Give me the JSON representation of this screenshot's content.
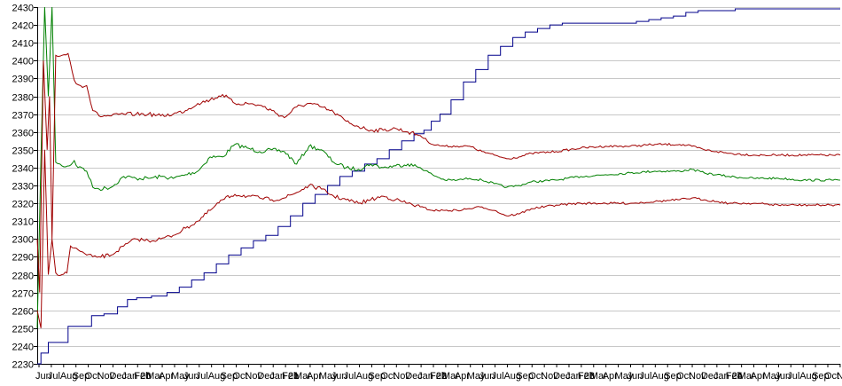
{
  "chart_data": {
    "type": "line",
    "title": "",
    "xlabel": "",
    "ylabel": "",
    "ylim": [
      2230,
      2430
    ],
    "yticks": [
      2230,
      2240,
      2250,
      2260,
      2270,
      2280,
      2290,
      2300,
      2310,
      2320,
      2330,
      2340,
      2350,
      2360,
      2370,
      2380,
      2390,
      2400,
      2410,
      2420,
      2430
    ],
    "xtick_labels": [
      "Jun",
      "Jul",
      "Aug",
      "Sep",
      "Oct",
      "Nov",
      "Dec",
      "Jan 20",
      "Feb",
      "Mar",
      "Apr",
      "May",
      "Jun",
      "Jul",
      "Aug",
      "Sep",
      "Oct",
      "Nov",
      "Dec",
      "Jan 21",
      "Feb",
      "Mar",
      "Apr",
      "May",
      "Jun",
      "Jul",
      "Aug",
      "Sep",
      "Oct",
      "Nov",
      "Dec",
      "Jan 22",
      "Feb",
      "Mar",
      "Apr",
      "May",
      "Jun",
      "Jul",
      "Aug",
      "Sep",
      "Oct",
      "Nov",
      "Dec",
      "Jan 23",
      "Feb",
      "Mar",
      "Apr",
      "May",
      "Jun",
      "Jul",
      "Aug",
      "Sep",
      "Oct",
      "Nov",
      "Dec",
      "Jan 24",
      "Feb",
      "Mar",
      "Apr",
      "May",
      "Jun",
      "Jul",
      "Aug",
      "Sep",
      "Oct",
      "No"
    ],
    "grid": true,
    "legend": "none",
    "x_range": [
      0,
      65
    ],
    "series": [
      {
        "color": "#00008b",
        "style": "step",
        "points": [
          [
            0,
            2230
          ],
          [
            0.6,
            2236
          ],
          [
            1.2,
            2242
          ],
          [
            2,
            2242
          ],
          [
            3,
            2251
          ],
          [
            4,
            2251
          ],
          [
            4.8,
            2257
          ],
          [
            6,
            2258
          ],
          [
            7,
            2262
          ],
          [
            7.6,
            2266
          ],
          [
            8.5,
            2267
          ],
          [
            10,
            2268
          ],
          [
            11,
            2270
          ],
          [
            12,
            2273
          ],
          [
            13,
            2277
          ],
          [
            14,
            2281
          ],
          [
            15,
            2286
          ],
          [
            16,
            2291
          ],
          [
            17,
            2295
          ],
          [
            18,
            2299
          ],
          [
            19,
            2302
          ],
          [
            20,
            2307
          ],
          [
            21,
            2313
          ],
          [
            22,
            2320
          ],
          [
            23,
            2325
          ],
          [
            24,
            2330
          ],
          [
            25,
            2335
          ],
          [
            26,
            2338
          ],
          [
            27,
            2342
          ],
          [
            28,
            2345
          ],
          [
            29,
            2350
          ],
          [
            30,
            2355
          ],
          [
            31,
            2359
          ],
          [
            31.6,
            2361
          ],
          [
            32.2,
            2366
          ],
          [
            33,
            2370
          ],
          [
            34,
            2378
          ],
          [
            35,
            2388
          ],
          [
            36,
            2395
          ],
          [
            37,
            2403
          ],
          [
            38,
            2408
          ],
          [
            39,
            2413
          ],
          [
            40,
            2416
          ],
          [
            41,
            2418
          ],
          [
            42,
            2420
          ],
          [
            43,
            2421
          ],
          [
            44,
            2421
          ],
          [
            45,
            2421
          ],
          [
            46,
            2421
          ],
          [
            47,
            2421
          ],
          [
            48,
            2421
          ],
          [
            49,
            2422
          ],
          [
            50,
            2423
          ],
          [
            51,
            2424
          ],
          [
            52,
            2425
          ],
          [
            53,
            2427
          ],
          [
            54,
            2428
          ],
          [
            55,
            2428
          ],
          [
            56,
            2428
          ],
          [
            57,
            2429
          ],
          [
            58,
            2429
          ],
          [
            60,
            2429
          ],
          [
            62,
            2429
          ],
          [
            65,
            2429
          ]
        ]
      },
      {
        "color": "#008000",
        "style": "noisy",
        "points": [
          [
            0,
            2250
          ],
          [
            0.3,
            2345
          ],
          [
            0.6,
            2430
          ],
          [
            0.9,
            2380
          ],
          [
            1.2,
            2430
          ],
          [
            1.5,
            2343
          ],
          [
            2,
            2341
          ],
          [
            2.6,
            2341
          ],
          [
            3,
            2344
          ],
          [
            3.3,
            2340
          ],
          [
            3.6,
            2340
          ],
          [
            4,
            2338
          ],
          [
            4.5,
            2329
          ],
          [
            5,
            2328
          ],
          [
            6,
            2329
          ],
          [
            7,
            2335
          ],
          [
            8,
            2334
          ],
          [
            9,
            2334
          ],
          [
            10,
            2335
          ],
          [
            11,
            2334
          ],
          [
            12,
            2336
          ],
          [
            13,
            2338
          ],
          [
            14,
            2346
          ],
          [
            15,
            2346
          ],
          [
            16,
            2353
          ],
          [
            17,
            2351
          ],
          [
            18,
            2349
          ],
          [
            19,
            2350
          ],
          [
            20,
            2349
          ],
          [
            21,
            2342
          ],
          [
            22,
            2352
          ],
          [
            23,
            2350
          ],
          [
            24,
            2343
          ],
          [
            25,
            2340
          ],
          [
            26,
            2339
          ],
          [
            27,
            2342
          ],
          [
            28,
            2340
          ],
          [
            29,
            2341
          ],
          [
            30,
            2342
          ],
          [
            31,
            2340
          ],
          [
            32,
            2336
          ],
          [
            33,
            2333
          ],
          [
            34,
            2333
          ],
          [
            35,
            2334
          ],
          [
            36,
            2333
          ],
          [
            37,
            2331
          ],
          [
            38,
            2329
          ],
          [
            39,
            2330
          ],
          [
            40,
            2332
          ],
          [
            42,
            2333
          ],
          [
            44,
            2335
          ],
          [
            46,
            2336
          ],
          [
            48,
            2337
          ],
          [
            50,
            2338
          ],
          [
            52,
            2338
          ],
          [
            53,
            2339
          ],
          [
            54,
            2337
          ],
          [
            55,
            2336
          ],
          [
            56,
            2335
          ],
          [
            58,
            2334
          ],
          [
            60,
            2334
          ],
          [
            62,
            2333
          ],
          [
            65,
            2333
          ]
        ]
      },
      {
        "color": "#a00000",
        "style": "noisy",
        "points": [
          [
            0,
            2300
          ],
          [
            0.2,
            2270
          ],
          [
            0.5,
            2400
          ],
          [
            0.8,
            2350
          ],
          [
            1,
            2380
          ],
          [
            1.2,
            2300
          ],
          [
            1.5,
            2403
          ],
          [
            2,
            2403
          ],
          [
            2.5,
            2404
          ],
          [
            3,
            2389
          ],
          [
            3.5,
            2386
          ],
          [
            4,
            2386
          ],
          [
            4.5,
            2372
          ],
          [
            5,
            2369
          ],
          [
            6,
            2369
          ],
          [
            7,
            2370
          ],
          [
            8,
            2370
          ],
          [
            9,
            2370
          ],
          [
            10,
            2369
          ],
          [
            11,
            2370
          ],
          [
            12,
            2372
          ],
          [
            13,
            2376
          ],
          [
            14,
            2378
          ],
          [
            15,
            2381
          ],
          [
            16,
            2376
          ],
          [
            17,
            2376
          ],
          [
            18,
            2375
          ],
          [
            19,
            2372
          ],
          [
            20,
            2368
          ],
          [
            21,
            2374
          ],
          [
            22,
            2376
          ],
          [
            23,
            2374
          ],
          [
            24,
            2371
          ],
          [
            25,
            2366
          ],
          [
            26,
            2363
          ],
          [
            27,
            2361
          ],
          [
            28,
            2361
          ],
          [
            29,
            2362
          ],
          [
            30,
            2360
          ],
          [
            31,
            2358
          ],
          [
            32,
            2353
          ],
          [
            33,
            2352
          ],
          [
            34,
            2352
          ],
          [
            35,
            2352
          ],
          [
            36,
            2349
          ],
          [
            37,
            2347
          ],
          [
            38,
            2345
          ],
          [
            39,
            2346
          ],
          [
            40,
            2348
          ],
          [
            42,
            2349
          ],
          [
            44,
            2351
          ],
          [
            46,
            2352
          ],
          [
            48,
            2352
          ],
          [
            50,
            2353
          ],
          [
            52,
            2353
          ],
          [
            53,
            2352
          ],
          [
            54,
            2350
          ],
          [
            55,
            2349
          ],
          [
            56,
            2348
          ],
          [
            58,
            2347
          ],
          [
            60,
            2347
          ],
          [
            62,
            2347
          ],
          [
            65,
            2347
          ]
        ]
      },
      {
        "color": "#a00000",
        "style": "noisy",
        "points": [
          [
            0,
            2260
          ],
          [
            0.3,
            2250
          ],
          [
            0.6,
            2350
          ],
          [
            0.9,
            2280
          ],
          [
            1.2,
            2300
          ],
          [
            1.5,
            2281
          ],
          [
            2,
            2280
          ],
          [
            2.4,
            2281
          ],
          [
            2.7,
            2296
          ],
          [
            3,
            2295
          ],
          [
            3.5,
            2293
          ],
          [
            4,
            2291
          ],
          [
            4.5,
            2290
          ],
          [
            5,
            2290
          ],
          [
            6,
            2291
          ],
          [
            7,
            2296
          ],
          [
            8,
            2300
          ],
          [
            9,
            2299
          ],
          [
            10,
            2300
          ],
          [
            11,
            2302
          ],
          [
            12,
            2306
          ],
          [
            13,
            2310
          ],
          [
            14,
            2316
          ],
          [
            15,
            2322
          ],
          [
            16,
            2325
          ],
          [
            17,
            2324
          ],
          [
            18,
            2323
          ],
          [
            19,
            2322
          ],
          [
            20,
            2323
          ],
          [
            21,
            2326
          ],
          [
            22,
            2330
          ],
          [
            23,
            2328
          ],
          [
            24,
            2324
          ],
          [
            25,
            2322
          ],
          [
            26,
            2320
          ],
          [
            27,
            2322
          ],
          [
            28,
            2324
          ],
          [
            29,
            2322
          ],
          [
            30,
            2320
          ],
          [
            31,
            2318
          ],
          [
            32,
            2316
          ],
          [
            33,
            2316
          ],
          [
            34,
            2316
          ],
          [
            35,
            2317
          ],
          [
            36,
            2318
          ],
          [
            37,
            2316
          ],
          [
            38,
            2313
          ],
          [
            39,
            2314
          ],
          [
            40,
            2317
          ],
          [
            42,
            2319
          ],
          [
            44,
            2320
          ],
          [
            46,
            2320
          ],
          [
            48,
            2320
          ],
          [
            50,
            2321
          ],
          [
            52,
            2322
          ],
          [
            53,
            2323
          ],
          [
            54,
            2322
          ],
          [
            55,
            2321
          ],
          [
            56,
            2320
          ],
          [
            58,
            2320
          ],
          [
            60,
            2319
          ],
          [
            62,
            2319
          ],
          [
            65,
            2319
          ]
        ]
      }
    ]
  }
}
